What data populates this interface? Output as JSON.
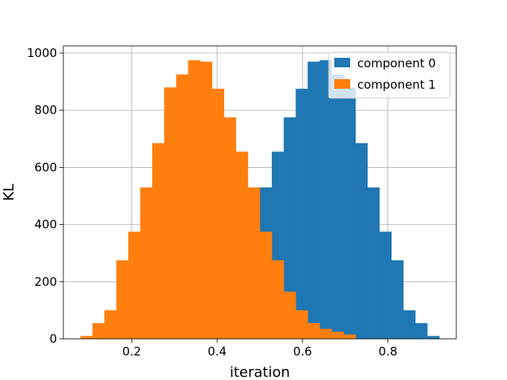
{
  "chart_data": {
    "type": "histogram",
    "title": "",
    "xlabel": "iteration",
    "ylabel": "KL",
    "xlim": [
      0.04,
      0.96
    ],
    "ylim": [
      0,
      1025
    ],
    "grid": true,
    "legend_position": "top-right",
    "x_ticks": [
      {
        "value": 0.2,
        "label": "0.2"
      },
      {
        "value": 0.4,
        "label": "0.4"
      },
      {
        "value": 0.6,
        "label": "0.6"
      },
      {
        "value": 0.8,
        "label": "0.8"
      }
    ],
    "y_ticks": [
      {
        "value": 0,
        "label": "0"
      },
      {
        "value": 200,
        "label": "200"
      },
      {
        "value": 400,
        "label": "400"
      },
      {
        "value": 600,
        "label": "600"
      },
      {
        "value": 800,
        "label": "800"
      },
      {
        "value": 1000,
        "label": "1000"
      }
    ],
    "series": [
      {
        "name": "component 0",
        "color": "#1f77b4",
        "bin_edges": [
          0.5,
          0.528,
          0.556,
          0.584,
          0.612,
          0.64,
          0.668,
          0.696,
          0.724,
          0.752,
          0.78,
          0.808,
          0.836,
          0.864,
          0.892,
          0.92
        ],
        "counts": [
          530,
          655,
          775,
          875,
          970,
          975,
          925,
          880,
          685,
          530,
          375,
          275,
          100,
          55,
          10
        ]
      },
      {
        "name": "component 1",
        "color": "#ff7f0e",
        "bin_edges": [
          0.08,
          0.108,
          0.136,
          0.164,
          0.192,
          0.22,
          0.248,
          0.276,
          0.304,
          0.332,
          0.36,
          0.388,
          0.416,
          0.444,
          0.472,
          0.5,
          0.528,
          0.556,
          0.584,
          0.612,
          0.64,
          0.668,
          0.696,
          0.724
        ],
        "counts": [
          10,
          55,
          100,
          275,
          375,
          530,
          685,
          880,
          925,
          975,
          970,
          875,
          775,
          655,
          530,
          375,
          275,
          165,
          100,
          55,
          35,
          25,
          15
        ]
      }
    ]
  }
}
